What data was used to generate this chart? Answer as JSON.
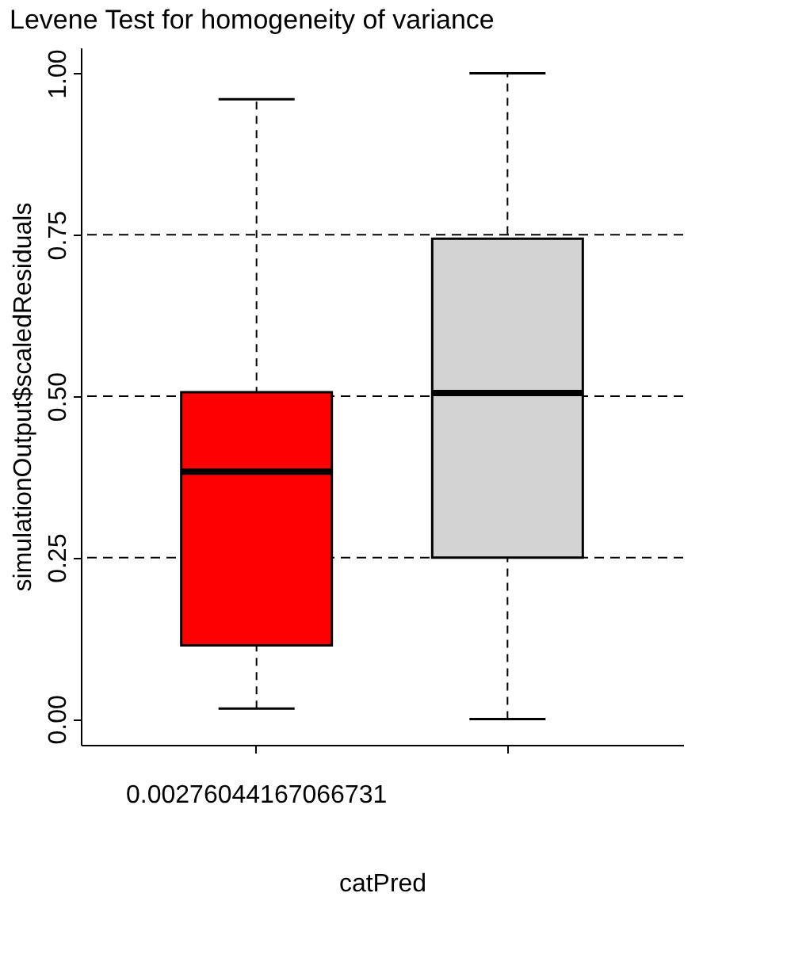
{
  "chart_data": {
    "type": "box",
    "title": "Levene Test for homogeneity of variance",
    "xlabel": "catPred",
    "ylabel": "simulationOutput$scaledResiduals",
    "categories": [
      "0.00276044167066731",
      null
    ],
    "colors": [
      "#ff0000",
      "#d3d3d3"
    ],
    "boxes": [
      {
        "low": 0.016,
        "q1": 0.114,
        "median": 0.383,
        "q3": 0.506,
        "high": 0.96
      },
      {
        "low": 0.0,
        "q1": 0.25,
        "median": 0.505,
        "q3": 0.744,
        "high": 1.0
      }
    ],
    "ylim": [
      -0.04,
      1.04
    ],
    "yticks": [
      {
        "value": 0,
        "label": "0.00"
      },
      {
        "value": 0.25,
        "label": "0.25"
      },
      {
        "value": 0.5,
        "label": "0.50"
      },
      {
        "value": 0.75,
        "label": "0.75"
      },
      {
        "value": 1,
        "label": "1.00"
      }
    ],
    "ref_lines": [
      {
        "axis": "y",
        "value": 0.25,
        "line_style": "dashed"
      },
      {
        "axis": "y",
        "value": 0.5,
        "line_style": "dashed"
      },
      {
        "axis": "y",
        "value": 0.75,
        "line_style": "dashed"
      }
    ],
    "grid": false
  }
}
